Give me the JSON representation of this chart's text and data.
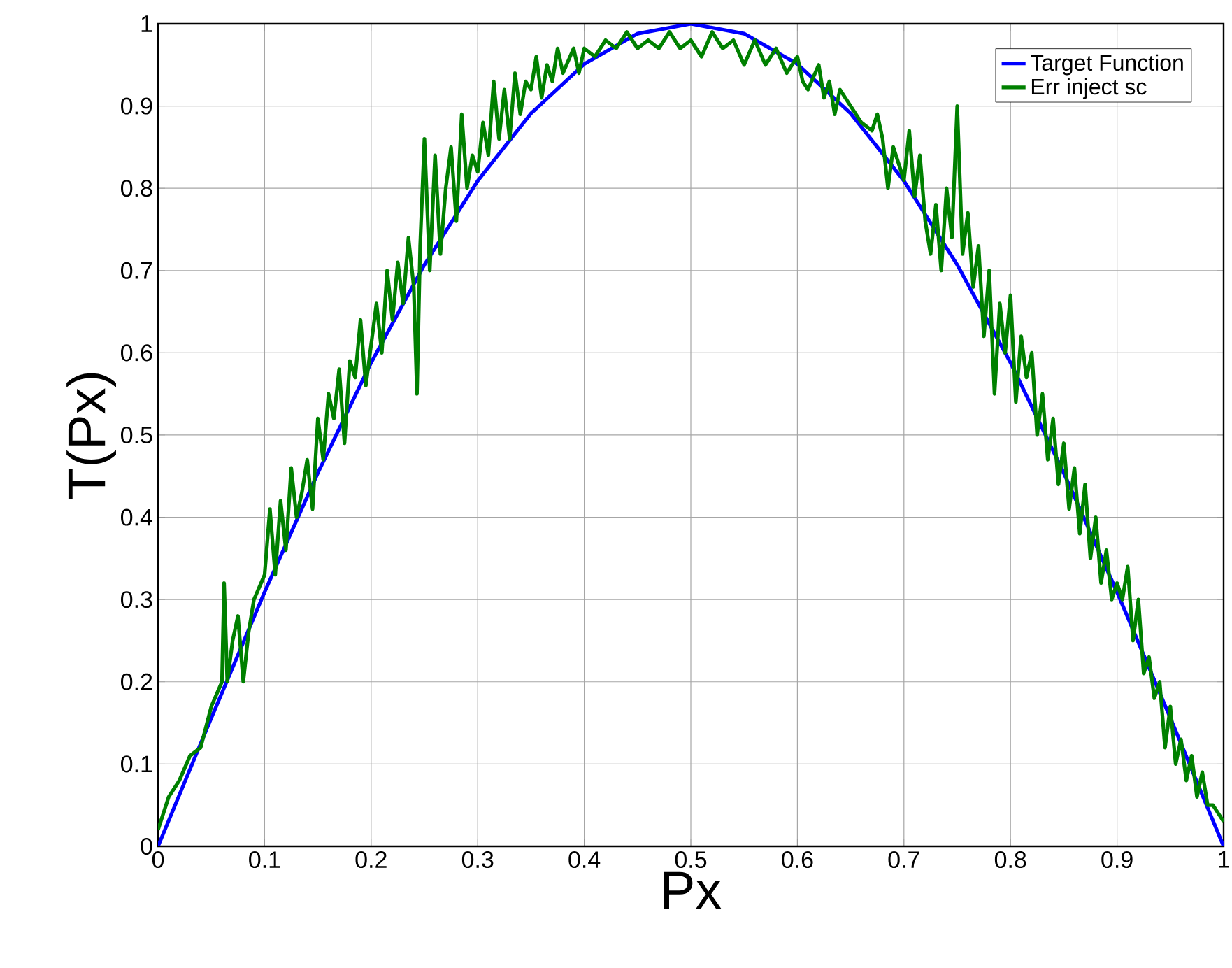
{
  "chart_data": {
    "type": "line",
    "xlabel": "Px",
    "ylabel": "T(Px)",
    "xlim": [
      0,
      1
    ],
    "ylim": [
      0,
      1
    ],
    "xticks": [
      0,
      0.1,
      0.2,
      0.3,
      0.4,
      0.5,
      0.6,
      0.7,
      0.8,
      0.9,
      1
    ],
    "yticks": [
      0,
      0.1,
      0.2,
      0.3,
      0.4,
      0.5,
      0.6,
      0.7,
      0.8,
      0.9,
      1
    ],
    "grid": true,
    "legend": "top right",
    "marker": "none",
    "line_style": "solid",
    "series": [
      {
        "name": "Target Function",
        "color": "#0000ff",
        "x": [
          0,
          0.05,
          0.1,
          0.15,
          0.2,
          0.25,
          0.3,
          0.35,
          0.4,
          0.45,
          0.5,
          0.55,
          0.6,
          0.65,
          0.7,
          0.75,
          0.8,
          0.85,
          0.9,
          0.95,
          1
        ],
        "values": [
          0,
          0.156,
          0.309,
          0.454,
          0.588,
          0.707,
          0.809,
          0.891,
          0.951,
          0.988,
          1,
          0.988,
          0.951,
          0.891,
          0.809,
          0.707,
          0.588,
          0.454,
          0.309,
          0.156,
          0
        ]
      },
      {
        "name": "Err inject sc",
        "color": "#008000",
        "x": [
          0,
          0.01,
          0.02,
          0.03,
          0.04,
          0.05,
          0.06,
          0.062,
          0.065,
          0.07,
          0.075,
          0.08,
          0.085,
          0.09,
          0.1,
          0.105,
          0.11,
          0.115,
          0.12,
          0.125,
          0.13,
          0.135,
          0.14,
          0.145,
          0.15,
          0.155,
          0.16,
          0.165,
          0.17,
          0.175,
          0.18,
          0.185,
          0.19,
          0.195,
          0.2,
          0.205,
          0.21,
          0.215,
          0.22,
          0.225,
          0.23,
          0.235,
          0.24,
          0.243,
          0.246,
          0.25,
          0.255,
          0.26,
          0.265,
          0.27,
          0.275,
          0.28,
          0.285,
          0.29,
          0.295,
          0.3,
          0.305,
          0.31,
          0.315,
          0.32,
          0.325,
          0.33,
          0.335,
          0.34,
          0.345,
          0.35,
          0.355,
          0.36,
          0.365,
          0.37,
          0.375,
          0.38,
          0.39,
          0.395,
          0.4,
          0.41,
          0.42,
          0.43,
          0.44,
          0.45,
          0.46,
          0.47,
          0.48,
          0.49,
          0.5,
          0.51,
          0.52,
          0.53,
          0.54,
          0.55,
          0.56,
          0.57,
          0.58,
          0.59,
          0.6,
          0.605,
          0.61,
          0.62,
          0.625,
          0.63,
          0.635,
          0.64,
          0.65,
          0.66,
          0.67,
          0.675,
          0.68,
          0.685,
          0.69,
          0.7,
          0.705,
          0.71,
          0.715,
          0.72,
          0.725,
          0.73,
          0.735,
          0.74,
          0.745,
          0.75,
          0.755,
          0.76,
          0.765,
          0.77,
          0.775,
          0.78,
          0.785,
          0.79,
          0.795,
          0.8,
          0.805,
          0.81,
          0.815,
          0.82,
          0.825,
          0.83,
          0.835,
          0.84,
          0.845,
          0.85,
          0.855,
          0.86,
          0.865,
          0.87,
          0.875,
          0.88,
          0.885,
          0.89,
          0.895,
          0.9,
          0.905,
          0.91,
          0.915,
          0.92,
          0.925,
          0.93,
          0.935,
          0.94,
          0.945,
          0.95,
          0.955,
          0.96,
          0.965,
          0.97,
          0.975,
          0.98,
          0.985,
          0.99,
          1
        ],
        "values": [
          0.02,
          0.06,
          0.08,
          0.11,
          0.12,
          0.17,
          0.2,
          0.32,
          0.2,
          0.25,
          0.28,
          0.2,
          0.26,
          0.3,
          0.33,
          0.41,
          0.33,
          0.42,
          0.36,
          0.46,
          0.4,
          0.43,
          0.47,
          0.41,
          0.52,
          0.47,
          0.55,
          0.52,
          0.58,
          0.49,
          0.59,
          0.57,
          0.64,
          0.56,
          0.61,
          0.66,
          0.6,
          0.7,
          0.64,
          0.71,
          0.66,
          0.74,
          0.68,
          0.55,
          0.73,
          0.86,
          0.7,
          0.84,
          0.72,
          0.8,
          0.85,
          0.76,
          0.89,
          0.8,
          0.84,
          0.82,
          0.88,
          0.84,
          0.93,
          0.86,
          0.92,
          0.86,
          0.94,
          0.89,
          0.93,
          0.92,
          0.96,
          0.91,
          0.95,
          0.93,
          0.97,
          0.94,
          0.97,
          0.94,
          0.97,
          0.96,
          0.98,
          0.97,
          0.99,
          0.97,
          0.98,
          0.97,
          0.99,
          0.97,
          0.98,
          0.96,
          0.99,
          0.97,
          0.98,
          0.95,
          0.98,
          0.95,
          0.97,
          0.94,
          0.96,
          0.93,
          0.92,
          0.95,
          0.91,
          0.93,
          0.89,
          0.92,
          0.9,
          0.88,
          0.87,
          0.89,
          0.86,
          0.8,
          0.85,
          0.81,
          0.87,
          0.79,
          0.84,
          0.76,
          0.72,
          0.78,
          0.7,
          0.8,
          0.74,
          0.9,
          0.72,
          0.77,
          0.68,
          0.73,
          0.62,
          0.7,
          0.55,
          0.66,
          0.6,
          0.67,
          0.54,
          0.62,
          0.57,
          0.6,
          0.5,
          0.55,
          0.47,
          0.52,
          0.44,
          0.49,
          0.41,
          0.46,
          0.38,
          0.44,
          0.35,
          0.4,
          0.32,
          0.36,
          0.3,
          0.32,
          0.3,
          0.34,
          0.25,
          0.3,
          0.21,
          0.23,
          0.18,
          0.2,
          0.12,
          0.17,
          0.1,
          0.13,
          0.08,
          0.11,
          0.06,
          0.09,
          0.05,
          0.05,
          0.03
        ]
      }
    ]
  }
}
